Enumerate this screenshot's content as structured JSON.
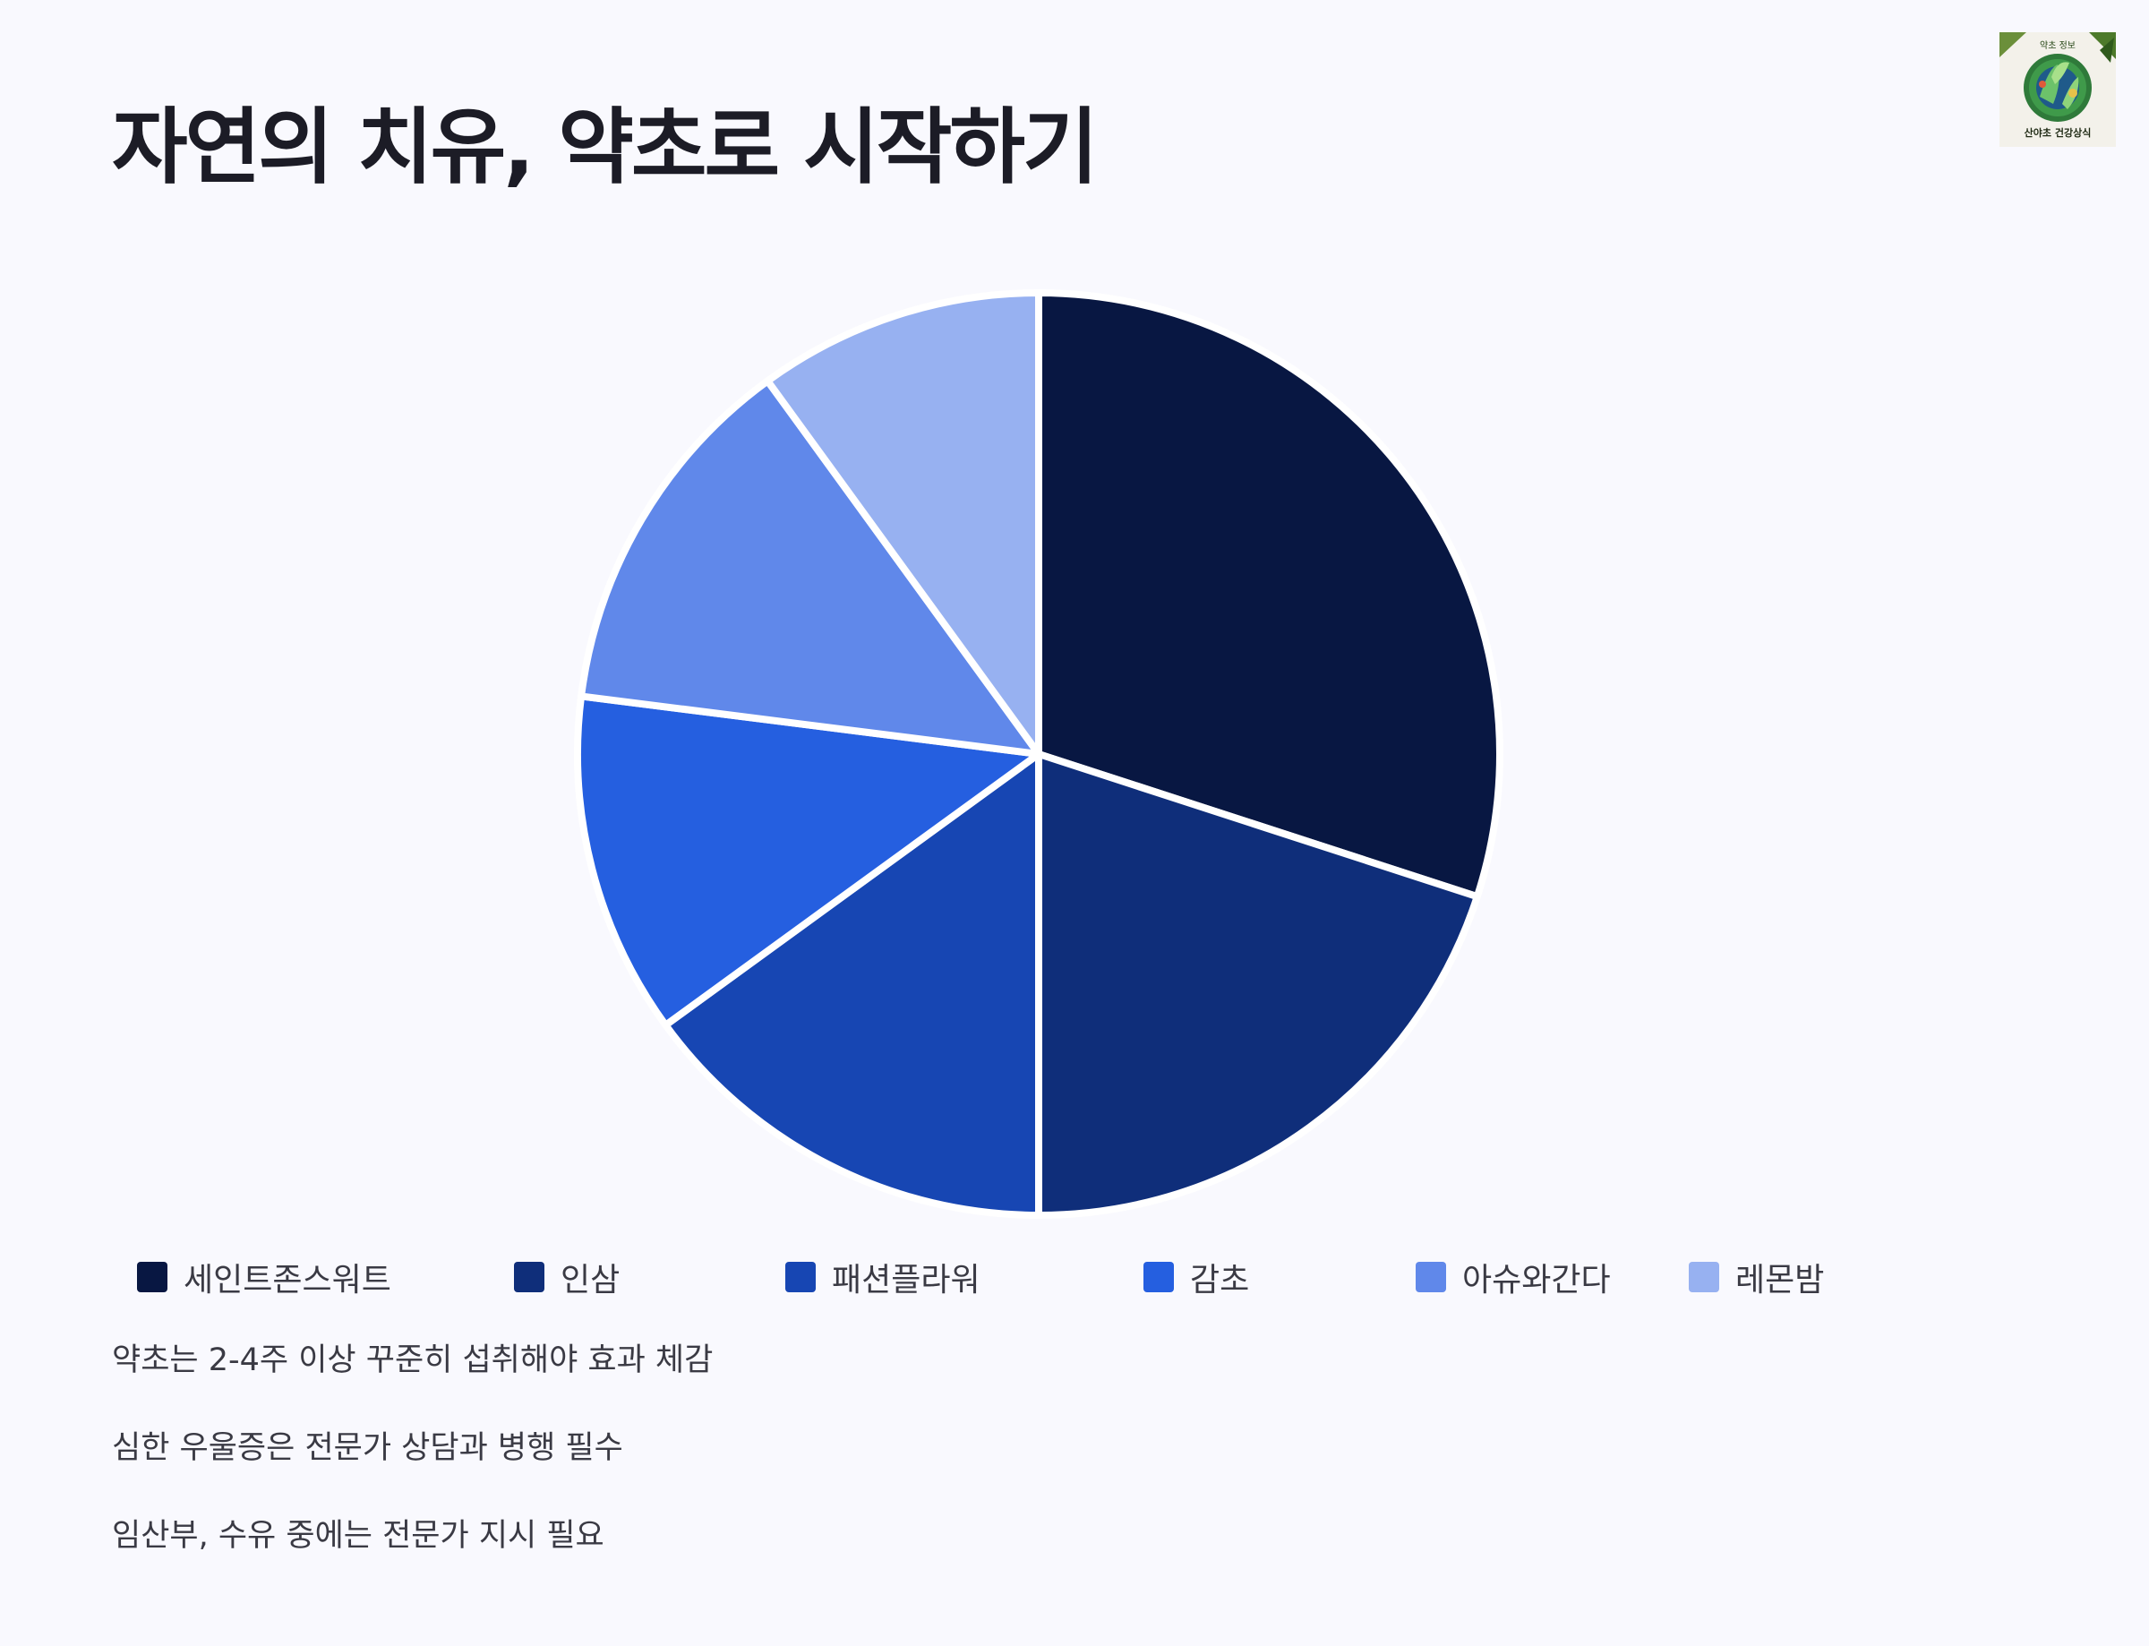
{
  "title": "자연의 치유, 약초로 시작하기",
  "logo": {
    "icon": "herbal-logo-icon",
    "text_top": "약초 정보",
    "text_bottom": "산야초 건강상식"
  },
  "chart_data": {
    "type": "pie",
    "title": "",
    "categories": [
      "세인트존스워트",
      "인삼",
      "패션플라워",
      "감초",
      "아슈와간다",
      "레몬밤"
    ],
    "values": [
      30,
      20,
      15,
      12,
      13,
      10
    ],
    "colors": [
      "#081742",
      "#0f2e7a",
      "#1746b3",
      "#255fe0",
      "#6088ea",
      "#97b1f1"
    ],
    "start_angle_deg": 0,
    "direction": "clockwise",
    "legend_position": "bottom",
    "slice_separator_color": "#ffffff"
  },
  "notes": [
    "약초는 2-4주 이상 꾸준히 섭취해야 효과 체감",
    "심한 우울증은 전문가 상담과 병행 필수",
    "임산부, 수유 중에는 전문가 지시 필요"
  ]
}
